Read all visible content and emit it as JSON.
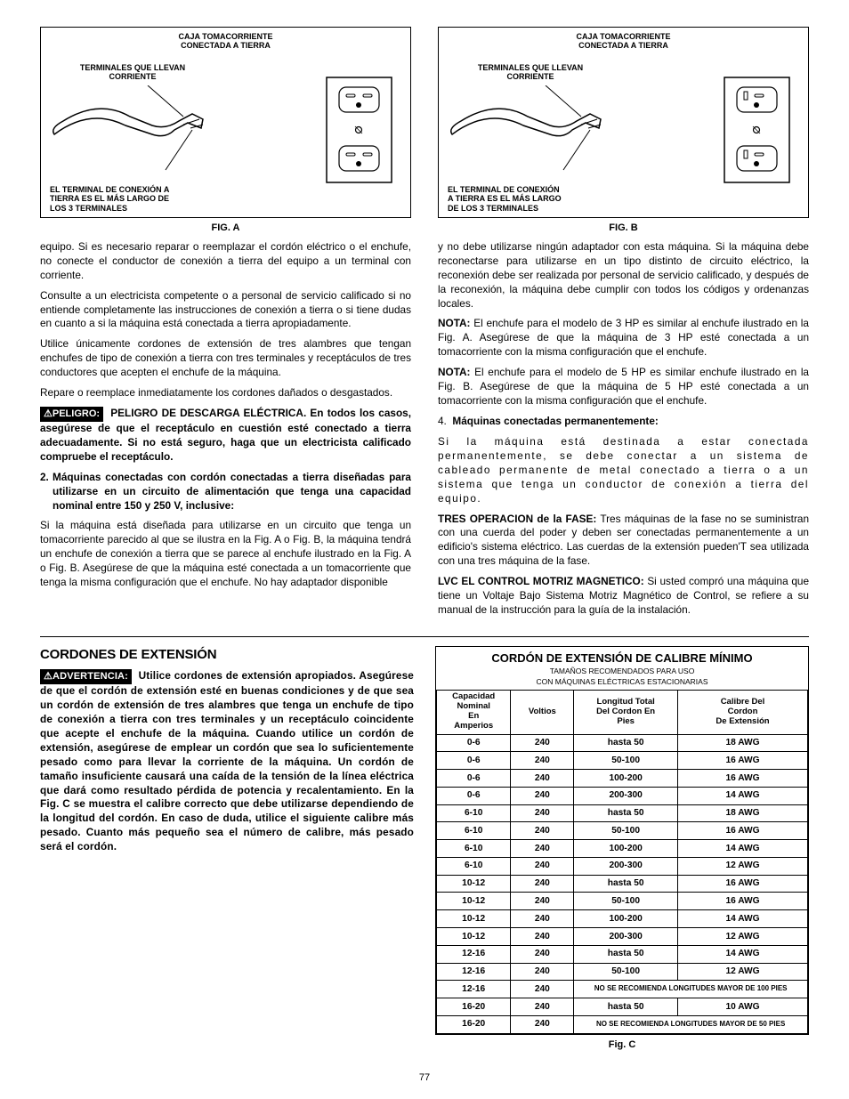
{
  "figA": {
    "labels": {
      "top": "CAJA TOMACORRIENTE\nCONECTADA A TIERRA",
      "mid": "TERMINALES QUE LLEVAN\nCORRIENTE",
      "bottom": "EL TERMINAL DE CONEXIÓN A\nTIERRA ES EL MÁS LARGO DE\nLOS 3 TERMINALES"
    },
    "caption": "FIG. A"
  },
  "figB": {
    "labels": {
      "top": "CAJA TOMACORRIENTE\nCONECTADA A TIERRA",
      "mid": "TERMINALES QUE LLEVAN\nCORRIENTE",
      "bottom": "EL TERMINAL DE CONEXIÓN\nA TIERRA ES EL MÁS LARGO\nDE LOS 3 TERMINALES"
    },
    "caption": "FIG. B"
  },
  "leftCol": {
    "p1": "equipo. Si es necesario reparar o reemplazar el cordón eléctrico o el enchufe, no conecte el conductor de conexión a tierra del equipo a un terminal con corriente.",
    "p2": "Consulte a un electricista competente o a personal de servicio calificado si no entiende completamente las instrucciones de conexión a tierra o si tiene dudas en cuanto a si la máquina está conectada a tierra apropiadamente.",
    "p3": "Utilice únicamente cordones de extensión de tres alambres que tengan enchufes de tipo de conexión a tierra con tres terminales y receptáculos de tres conductores que acepten el enchufe de la máquina.",
    "p4": "Repare o reemplace inmediatamente los cordones dañados o desgastados.",
    "badgePeligro": "PELIGRO:",
    "peligroText": "PELIGRO DE DESCARGA ELÉCTRICA. En todos los casos, asegúrese de que el receptáculo en cuestión esté conectado a tierra adecuadamente. Si no está seguro, haga que un electricista calificado compruebe el receptáculo.",
    "list2num": "2.",
    "list2": "Máquinas conectadas con cordón conectadas a tierra diseñadas para utilizarse en un circuito de alimentación que tenga una capacidad nominal entre 150 y 250 V, inclusive:",
    "p5": "Si la máquina está diseñada para utilizarse en un circuito que tenga un tomacorriente parecido al que se ilustra en la Fig. A o Fig. B, la máquina tendrá un enchufe de conexión a tierra que se parece al enchufe ilustrado en la Fig. A o Fig. B. Asegúrese de que la máquina esté conectada a un tomacorriente que tenga la misma configuración que el enchufe. No hay adaptador disponible"
  },
  "rightCol": {
    "p1": "y no debe utilizarse ningún adaptador con esta máquina. Si la máquina debe reconectarse para utilizarse en un tipo distinto de circuito eléctrico, la reconexión debe ser realizada por personal de servicio calificado, y después de la reconexión, la máquina debe cumplir con todos los códigos y ordenanzas locales.",
    "nota1bold": "NOTA:",
    "nota1": " El enchufe para el modelo de 3 HP es similar al enchufe ilustrado en la Fig. A. Asegúrese de que la máquina de 3 HP esté conectada a un tomacorriente con la misma configuración que el enchufe.",
    "nota2bold": "NOTA:",
    "nota2": " El enchufe para el modelo de 5 HP es similar enchufe ilustrado en la Fig. B. Asegúrese de que la máquina de 5 HP esté conectada a un tomacorriente con la misma configuración que el enchufe.",
    "list4num": "4.",
    "list4": "Máquinas conectadas permanentemente:",
    "p2": "Si la máquina está destinada a estar conectada permanentemente, se debe conectar a un sistema de cableado permanente de metal conectado a tierra o a un sistema que tenga un conductor de conexión a tierra del equipo.",
    "tresBold": "TRES OPERACION de la FASE:",
    "tres": " Tres máquinas de la fase no se suministran con una cuerda del poder y deben ser conectadas permanentemente a un edificio's sistema eléctrico. Las cuerdas de la extensión pueden'T sea utilizada con una tres máquina de la fase.",
    "lvcBold": "LVC EL CONTROL MOTRIZ MAGNETICO:",
    "lvc": " Si usted compró una máquina que tiene un Voltaje Bajo Sistema Motriz Magnético de Control, se refiere a su manual de la instrucción para la guía de la instalación."
  },
  "cordones": {
    "title": "CORDONES DE EXTENSIÓN",
    "badge": "ADVERTENCIA:",
    "text": "Utilice cordones de extensión apropiados. Asegúrese de que el cordón de extensión esté en buenas condiciones y de que sea un cordón de extensión de tres alambres que tenga un enchufe de tipo de conexión a tierra con tres terminales y un receptáculo coincidente que acepte el enchufe de la máquina. Cuando utilice un cordón de extensión, asegúrese de emplear un cordón que sea lo suficientemente pesado como para llevar la corriente de la máquina. Un cordón de tamaño insuficiente causará una caída de la tensión de la línea eléctrica que dará como resultado pérdida de potencia y recalentamiento. En la Fig. C se muestra el calibre correcto que debe utilizarse dependiendo de la longitud del cordón. En caso de duda, utilice el siguiente calibre más pesado. Cuanto más pequeño sea el número de calibre, más pesado será el cordón."
  },
  "table": {
    "title": "CORDÓN DE EXTENSIÓN DE CALIBRE MÍNIMO",
    "sub1": "TAMAÑOS RECOMENDADOS PARA USO",
    "sub2": "CON MÁQUINAS ELÉCTRICAS ESTACIONARIAS",
    "headers": {
      "amps": "Capacidad\nNominal\nEn\nAmperios",
      "volts": "Voltios",
      "length": "Longitud Total\nDel Cordon En\nPies",
      "gauge": "Calibre Del\nCordon\nDe Extensión"
    },
    "rows": [
      {
        "amps": "0-6",
        "volts": "240",
        "len": "hasta 50",
        "awg": "18 AWG"
      },
      {
        "amps": "0-6",
        "volts": "240",
        "len": "50-100",
        "awg": "16 AWG"
      },
      {
        "amps": "0-6",
        "volts": "240",
        "len": "100-200",
        "awg": "16 AWG"
      },
      {
        "amps": "0-6",
        "volts": "240",
        "len": "200-300",
        "awg": "14 AWG"
      },
      {
        "amps": "6-10",
        "volts": "240",
        "len": "hasta 50",
        "awg": "18 AWG"
      },
      {
        "amps": "6-10",
        "volts": "240",
        "len": "50-100",
        "awg": "16 AWG"
      },
      {
        "amps": "6-10",
        "volts": "240",
        "len": "100-200",
        "awg": "14 AWG"
      },
      {
        "amps": "6-10",
        "volts": "240",
        "len": "200-300",
        "awg": "12 AWG"
      },
      {
        "amps": "10-12",
        "volts": "240",
        "len": "hasta 50",
        "awg": "16 AWG"
      },
      {
        "amps": "10-12",
        "volts": "240",
        "len": "50-100",
        "awg": "16 AWG"
      },
      {
        "amps": "10-12",
        "volts": "240",
        "len": "100-200",
        "awg": "14 AWG"
      },
      {
        "amps": "10-12",
        "volts": "240",
        "len": "200-300",
        "awg": "12 AWG"
      },
      {
        "amps": "12-16",
        "volts": "240",
        "len": "hasta 50",
        "awg": "14 AWG"
      },
      {
        "amps": "12-16",
        "volts": "240",
        "len": "50-100",
        "awg": "12 AWG"
      },
      {
        "amps": "12-16",
        "volts": "240",
        "note": "NO SE RECOMIENDA LONGITUDES MAYOR DE 100 PIES"
      },
      {
        "amps": "16-20",
        "volts": "240",
        "len": "hasta 50",
        "awg": "10 AWG"
      },
      {
        "amps": "16-20",
        "volts": "240",
        "note": "NO SE RECOMIENDA LONGITUDES MAYOR DE 50 PIES"
      }
    ],
    "caption": "Fig. C"
  },
  "pageNum": "77"
}
